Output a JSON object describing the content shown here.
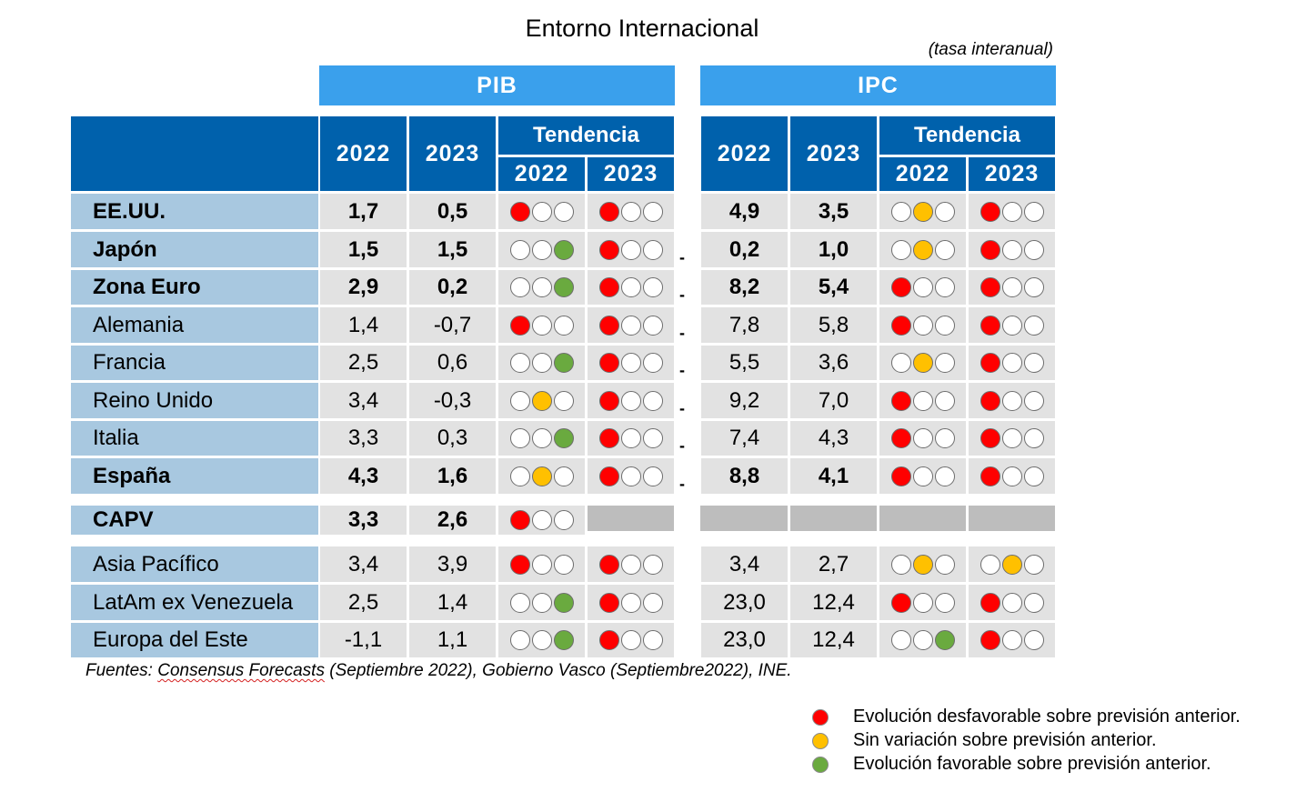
{
  "title": "Entorno Internacional",
  "units_note": "(tasa interanual)",
  "groups": {
    "pib": "PIB",
    "ipc": "IPC"
  },
  "headers": {
    "y2022": "2022",
    "y2023": "2023",
    "tendencia": "Tendencia"
  },
  "colors": {
    "red": "#ff0000",
    "orange": "#ffc000",
    "green": "#6aaa3f",
    "empty": "#ffffff",
    "header_dark": "#0061ac",
    "header_light": "#3aa0ec"
  },
  "rows": [
    {
      "label": "EE.UU.",
      "bold": true,
      "pib_2022": "1,7",
      "pib_2023": "0,5",
      "pib_t22": "red",
      "pib_t23": "red",
      "dash": "",
      "ipc_2022": "4,9",
      "ipc_2023": "3,5",
      "ipc_t22": "orange",
      "ipc_t23": "red"
    },
    {
      "label": "Japón",
      "bold": true,
      "pib_2022": "1,5",
      "pib_2023": "1,5",
      "pib_t22": "green",
      "pib_t23": "red",
      "dash": "-",
      "ipc_2022": "0,2",
      "ipc_2023": "1,0",
      "ipc_t22": "orange",
      "ipc_t23": "red"
    },
    {
      "label": "Zona Euro",
      "bold": true,
      "pib_2022": "2,9",
      "pib_2023": "0,2",
      "pib_t22": "green",
      "pib_t23": "red",
      "dash": "-",
      "ipc_2022": "8,2",
      "ipc_2023": "5,4",
      "ipc_t22": "red",
      "ipc_t23": "red"
    },
    {
      "label": "Alemania",
      "bold": false,
      "pib_2022": "1,4",
      "pib_2023": "-0,7",
      "pib_t22": "red",
      "pib_t23": "red",
      "dash": "-",
      "ipc_2022": "7,8",
      "ipc_2023": "5,8",
      "ipc_t22": "red",
      "ipc_t23": "red"
    },
    {
      "label": "Francia",
      "bold": false,
      "pib_2022": "2,5",
      "pib_2023": "0,6",
      "pib_t22": "green",
      "pib_t23": "red",
      "dash": "-",
      "ipc_2022": "5,5",
      "ipc_2023": "3,6",
      "ipc_t22": "orange",
      "ipc_t23": "red"
    },
    {
      "label": "Reino Unido",
      "bold": false,
      "pib_2022": "3,4",
      "pib_2023": "-0,3",
      "pib_t22": "orange",
      "pib_t23": "red",
      "dash": "-",
      "ipc_2022": "9,2",
      "ipc_2023": "7,0",
      "ipc_t22": "red",
      "ipc_t23": "red"
    },
    {
      "label": "Italia",
      "bold": false,
      "pib_2022": "3,3",
      "pib_2023": "0,3",
      "pib_t22": "green",
      "pib_t23": "red",
      "dash": "-",
      "ipc_2022": "7,4",
      "ipc_2023": "4,3",
      "ipc_t22": "red",
      "ipc_t23": "red"
    },
    {
      "label": "España",
      "bold": true,
      "pib_2022": "4,3",
      "pib_2023": "1,6",
      "pib_t22": "orange",
      "pib_t23": "red",
      "dash": "-",
      "ipc_2022": "8,8",
      "ipc_2023": "4,1",
      "ipc_t22": "red",
      "ipc_t23": "red"
    },
    {
      "label": "CAPV",
      "bold": true,
      "pib_2022": "3,3",
      "pib_2023": "2,6",
      "pib_t22": "red",
      "pib_t23": "",
      "dash": "",
      "ipc_2022": "",
      "ipc_2023": "",
      "ipc_t22": "",
      "ipc_t23": ""
    },
    {
      "label": "Asia Pacífico",
      "bold": false,
      "pib_2022": "3,4",
      "pib_2023": "3,9",
      "pib_t22": "red",
      "pib_t23": "red",
      "dash": "",
      "ipc_2022": "3,4",
      "ipc_2023": "2,7",
      "ipc_t22": "orange",
      "ipc_t23": "orange"
    },
    {
      "label": "LatAm ex Venezuela",
      "bold": false,
      "pib_2022": "2,5",
      "pib_2023": "1,4",
      "pib_t22": "green",
      "pib_t23": "red",
      "dash": "",
      "ipc_2022": "23,0",
      "ipc_2023": "12,4",
      "ipc_t22": "red",
      "ipc_t23": "red"
    },
    {
      "label": "Europa del Este",
      "bold": false,
      "pib_2022": "-1,1",
      "pib_2023": "1,1",
      "pib_t22": "green",
      "pib_t23": "red",
      "dash": "",
      "ipc_2022": "23,0",
      "ipc_2023": "12,4",
      "ipc_t22": "green",
      "ipc_t23": "red"
    }
  ],
  "footnote": {
    "prefix": "Fuentes: ",
    "source1": "Consensus Forecasts",
    "rest": " (Septiembre 2022), Gobierno Vasco (Septiembre2022), INE."
  },
  "legend": [
    {
      "color": "red",
      "text": "Evolución desfavorable sobre previsión anterior."
    },
    {
      "color": "orange",
      "text": "Sin variación sobre previsión anterior."
    },
    {
      "color": "green",
      "text": "Evolución favorable sobre previsión anterior."
    }
  ]
}
